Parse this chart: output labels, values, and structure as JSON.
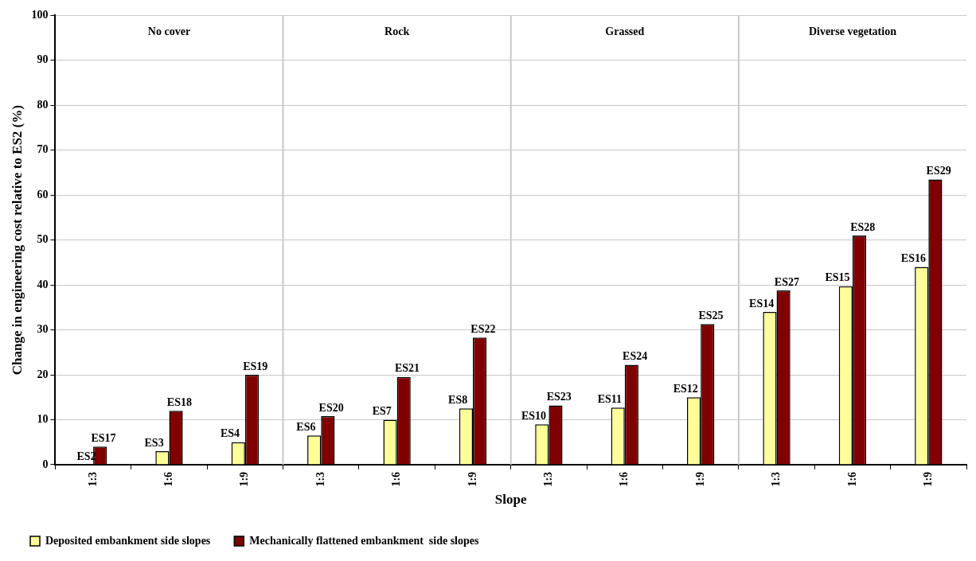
{
  "chart_data": {
    "type": "bar",
    "xlabel": "Slope",
    "ylabel": "Change in engineering cost relative to ES2 (%)",
    "categories": [
      "1:3",
      "1:6",
      "1:9",
      "1:3",
      "1:6",
      "1:9",
      "1:3",
      "1:6",
      "1:9",
      "1:3",
      "1:6",
      "1:9"
    ],
    "series": [
      {
        "name": "Deposited embankment side slopes",
        "color": "#ffff99",
        "values": [
          0,
          3,
          5,
          6.5,
          10,
          12.5,
          9,
          12.7,
          15,
          34,
          39.7,
          44
        ],
        "value_labels": [
          "ES2",
          "ES3",
          "ES4",
          "ES6",
          "ES7",
          "ES8",
          "ES10",
          "ES11",
          "ES12",
          "ES14",
          "ES15",
          "ES16"
        ]
      },
      {
        "name": "Mechanically flattened embankment  side slopes",
        "color": "#800000",
        "values": [
          4,
          12,
          20,
          10.8,
          19.5,
          28.3,
          13.2,
          22.2,
          31.3,
          38.8,
          51,
          63.5
        ],
        "value_labels": [
          "ES17",
          "ES18",
          "ES19",
          "ES20",
          "ES21",
          "ES22",
          "ES23",
          "ES24",
          "ES25",
          "ES27",
          "ES28",
          "ES29"
        ]
      }
    ],
    "annotations": [
      "No cover",
      "Rock",
      "Grassed",
      "Diverse vegetation"
    ],
    "ylim": [
      0,
      100
    ],
    "yticks": [
      0,
      10,
      20,
      30,
      40,
      50,
      60,
      70,
      80,
      90,
      100
    ],
    "grid": "y",
    "legend": "bottom"
  }
}
